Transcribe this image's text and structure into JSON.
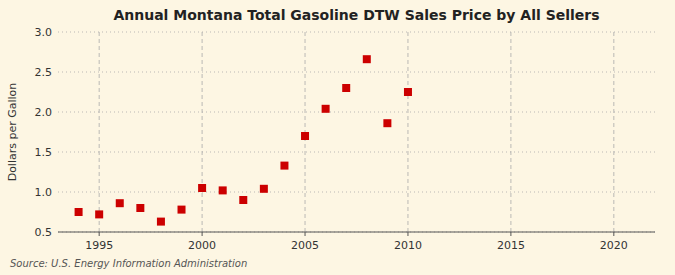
{
  "chart_data": {
    "type": "scatter",
    "title": "Annual Montana Total Gasoline DTW Sales Price by All Sellers",
    "ylabel": "Dollars per Gallon",
    "annotations": [
      "Source: U.S. Energy Information Administration"
    ],
    "x": [
      1994,
      1995,
      1996,
      1997,
      1998,
      1999,
      2000,
      2001,
      2002,
      2003,
      2004,
      2005,
      2006,
      2007,
      2008,
      2009,
      2010
    ],
    "values": [
      0.75,
      0.72,
      0.86,
      0.8,
      0.63,
      0.78,
      1.05,
      1.02,
      0.9,
      1.04,
      1.33,
      1.7,
      2.04,
      2.3,
      2.66,
      1.86,
      2.25
    ],
    "xlim": [
      1993,
      2022
    ],
    "ylim": [
      0.5,
      3.0
    ],
    "xticks": [
      1995,
      2000,
      2005,
      2010,
      2015,
      2020
    ],
    "yticks": [
      0.5,
      {
        "value": 1.0,
        "label": "1.0"
      },
      1.5,
      {
        "value": 2.0,
        "label": "2.0"
      },
      2.5,
      {
        "value": 3.0,
        "label": "3.0"
      }
    ],
    "color": "#cc0000",
    "marker": "square",
    "grid": true
  }
}
